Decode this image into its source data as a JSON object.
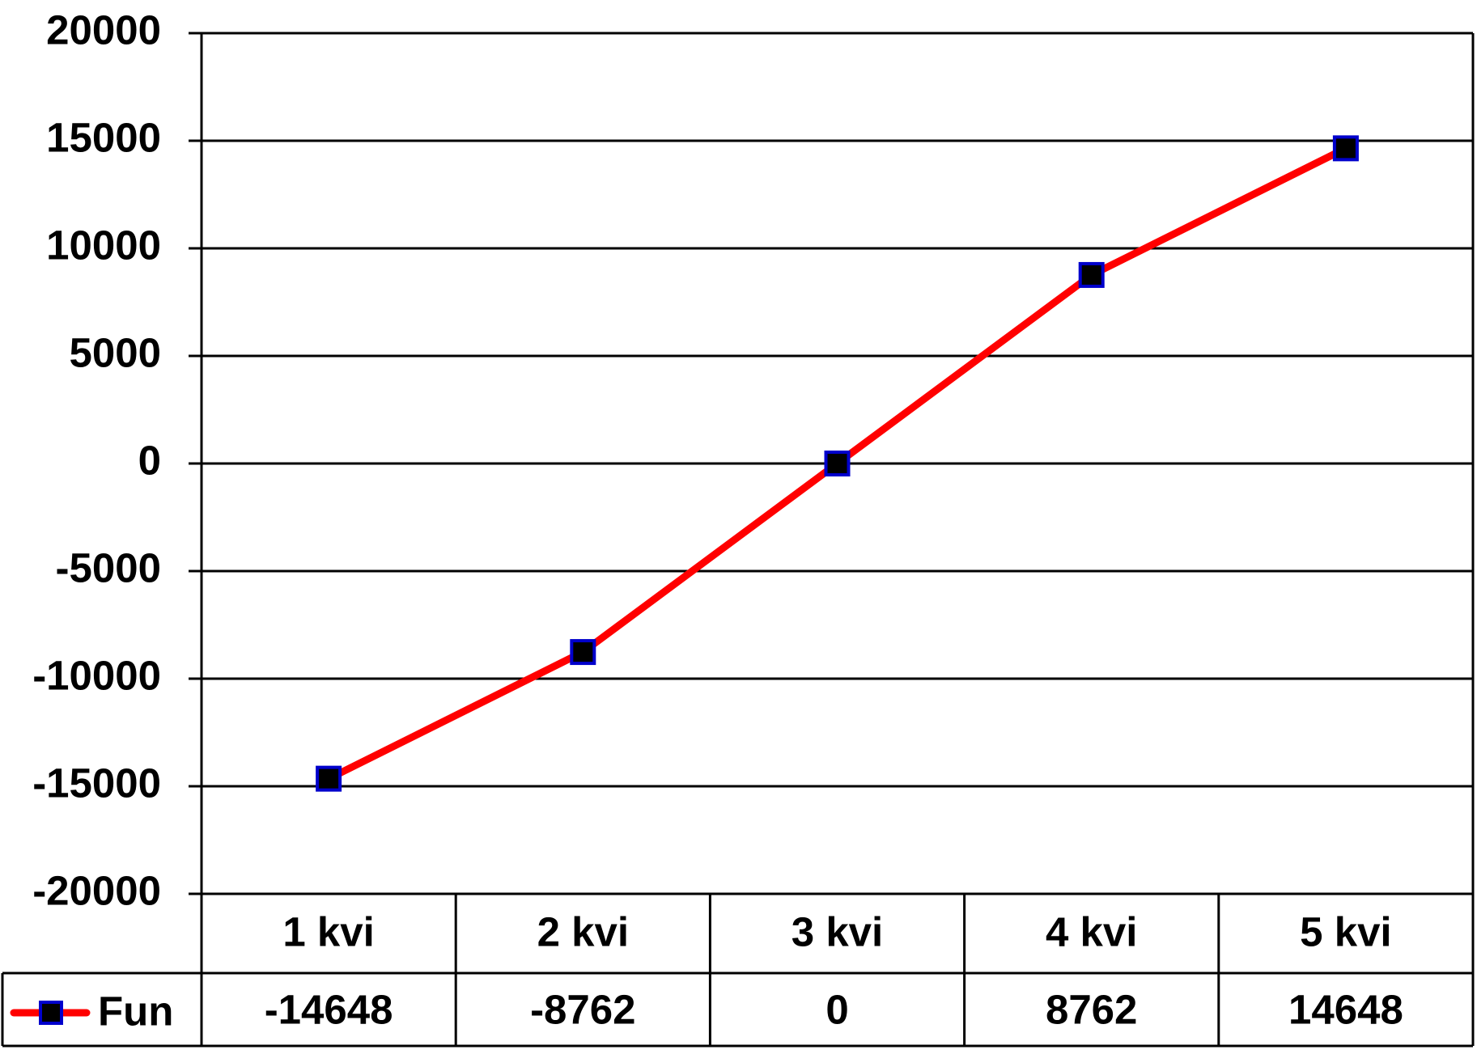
{
  "chart_data": {
    "type": "line",
    "categories": [
      "1 kvi",
      "2 kvi",
      "3 kvi",
      "4 kvi",
      "5 kvi"
    ],
    "series": [
      {
        "name": "Fun",
        "color": "#ff0000",
        "marker_color": "#000000",
        "marker_edge": "#0000cc",
        "values": [
          -14648,
          -8762,
          0,
          8762,
          14648
        ]
      }
    ],
    "ylim": [
      -20000,
      20000
    ],
    "yticks": [
      -20000,
      -15000,
      -10000,
      -5000,
      0,
      5000,
      10000,
      15000,
      20000
    ],
    "grid": true,
    "data_table": true
  }
}
